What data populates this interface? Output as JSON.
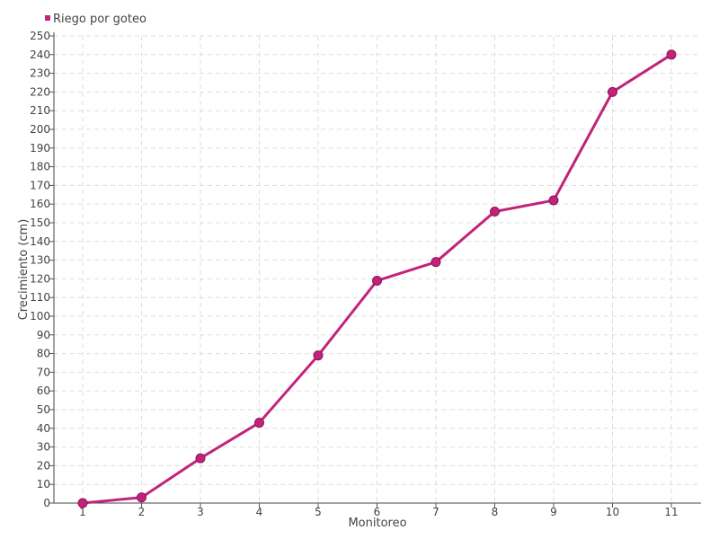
{
  "chart_data": {
    "type": "line",
    "title": "",
    "xlabel": "Monitoreo",
    "ylabel": "Crecimiento (cm)",
    "categories": [
      "1",
      "2",
      "3",
      "4",
      "5",
      "6",
      "7",
      "8",
      "9",
      "10",
      "11"
    ],
    "series": [
      {
        "name": "Riego por goteo",
        "color": "#c2237a",
        "values": [
          0,
          3,
          24,
          43,
          79,
          119,
          129,
          156,
          162,
          220,
          240
        ]
      }
    ],
    "ylim": [
      0,
      250
    ],
    "ytick_step": 10,
    "grid": true,
    "legend_position": "top-left"
  }
}
